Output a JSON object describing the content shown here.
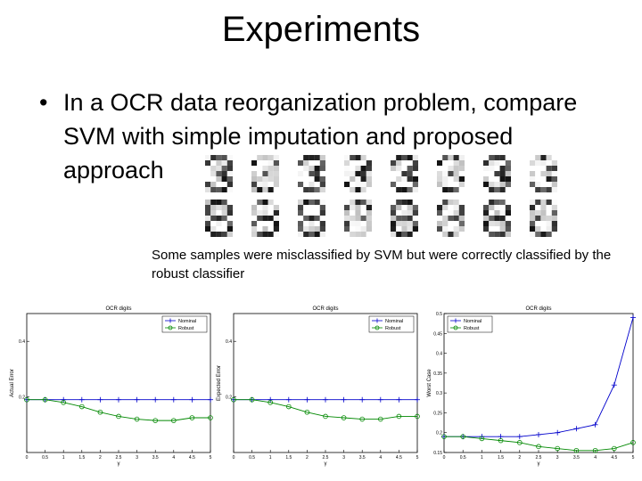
{
  "slide": {
    "title": "Experiments",
    "bullet_symbol": "•",
    "bullet_text": "In a OCR data reorganization problem, compare SVM with simple imputation and proposed approach",
    "caption": "Some samples were misclassified by SVM but were correctly classified by the robust classifier"
  },
  "digit_samples": {
    "top_row": [
      "3",
      "3",
      "3",
      "3",
      "3",
      "3",
      "3",
      "3"
    ],
    "bottom_row": [
      "8",
      "8",
      "8",
      "8",
      "8",
      "8",
      "8",
      "8"
    ]
  },
  "chart_data": [
    {
      "type": "line",
      "title": "OCR digits",
      "xlabel": "γ",
      "ylabel": "Actual Error",
      "xlim": [
        0,
        5
      ],
      "x_ticks": [
        "0",
        "0.5",
        "1",
        "1.5",
        "2",
        "2.5",
        "3",
        "3.5",
        "4",
        "4.5",
        "5"
      ],
      "ylim": [
        0,
        0.5
      ],
      "y_ticks": [
        "0.2",
        "0.4"
      ],
      "legend": "top-right",
      "x": [
        0,
        0.5,
        1,
        1.5,
        2,
        2.5,
        3,
        3.5,
        4,
        4.5,
        5
      ],
      "series": [
        {
          "name": "Nominal",
          "color": "#0000cc",
          "marker": "plus",
          "values": [
            0.19,
            0.19,
            0.19,
            0.19,
            0.19,
            0.19,
            0.19,
            0.19,
            0.19,
            0.19,
            0.19
          ]
        },
        {
          "name": "Robust",
          "color": "#008800",
          "marker": "circle",
          "values": [
            0.19,
            0.19,
            0.18,
            0.165,
            0.145,
            0.13,
            0.12,
            0.115,
            0.115,
            0.125,
            0.125
          ]
        }
      ]
    },
    {
      "type": "line",
      "title": "OCR digits",
      "xlabel": "γ",
      "ylabel": "Expected Error",
      "xlim": [
        0,
        5
      ],
      "x_ticks": [
        "0",
        "0.5",
        "1",
        "1.5",
        "2",
        "2.5",
        "3",
        "3.5",
        "4",
        "4.5",
        "5"
      ],
      "ylim": [
        0,
        0.5
      ],
      "y_ticks": [
        "0.2",
        "0.4"
      ],
      "legend": "top-right",
      "x": [
        0,
        0.5,
        1,
        1.5,
        2,
        2.5,
        3,
        3.5,
        4,
        4.5,
        5
      ],
      "series": [
        {
          "name": "Nominal",
          "color": "#0000cc",
          "marker": "plus",
          "values": [
            0.19,
            0.19,
            0.19,
            0.19,
            0.19,
            0.19,
            0.19,
            0.19,
            0.19,
            0.19,
            0.19
          ]
        },
        {
          "name": "Robust",
          "color": "#008800",
          "marker": "circle",
          "values": [
            0.19,
            0.19,
            0.18,
            0.165,
            0.145,
            0.13,
            0.125,
            0.12,
            0.12,
            0.13,
            0.13
          ]
        }
      ]
    },
    {
      "type": "line",
      "title": "OCR digits",
      "xlabel": "γ",
      "ylabel": "Worst Case",
      "xlim": [
        0,
        5
      ],
      "x_ticks": [
        "0",
        "0.5",
        "1",
        "1.5",
        "2",
        "2.5",
        "3",
        "3.5",
        "4",
        "4.5",
        "5"
      ],
      "ylim": [
        0.15,
        0.5
      ],
      "y_ticks": [
        "0.15",
        "0.2",
        "0.25",
        "0.3",
        "0.35",
        "0.4",
        "0.45",
        "0.5"
      ],
      "legend": "top-left",
      "x": [
        0,
        0.5,
        1,
        1.5,
        2,
        2.5,
        3,
        3.5,
        4,
        4.5,
        5
      ],
      "series": [
        {
          "name": "Nominal",
          "color": "#0000cc",
          "marker": "plus",
          "values": [
            0.19,
            0.19,
            0.19,
            0.19,
            0.19,
            0.195,
            0.2,
            0.21,
            0.22,
            0.32,
            0.49
          ]
        },
        {
          "name": "Robust",
          "color": "#008800",
          "marker": "circle",
          "values": [
            0.19,
            0.19,
            0.185,
            0.18,
            0.175,
            0.165,
            0.16,
            0.155,
            0.155,
            0.16,
            0.175
          ]
        }
      ]
    }
  ]
}
